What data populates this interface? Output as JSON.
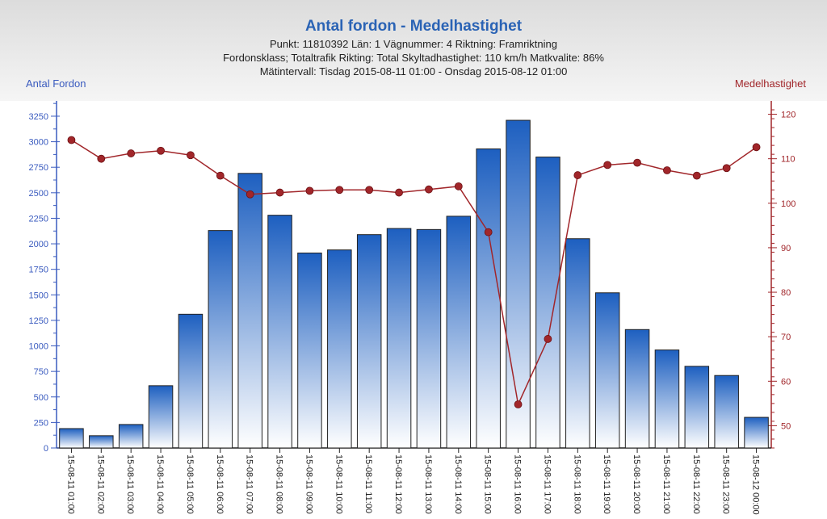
{
  "chart_data": {
    "type": "bar",
    "title": "Antal fordon - Medelhastighet",
    "subtitle_lines": [
      "Punkt: 11810392 Län: 1 Vägnummer: 4 Riktning: Framriktning",
      "Fordonsklass; Totaltrafik Rikting: Total Skyltadhastighet: 110 km/h Matkvalite: 86%",
      "Mätintervall: Tisdag 2015-08-11 01:00 - Onsdag 2015-08-12 01:00"
    ],
    "ylabel": "Antal Fordon",
    "y2label": "Medelhastighet",
    "ylim": [
      0,
      3400
    ],
    "y2lim": [
      45,
      123
    ],
    "yticks": [
      0,
      250,
      500,
      750,
      1000,
      1250,
      1500,
      1750,
      2000,
      2250,
      2500,
      2750,
      3000,
      3250
    ],
    "y2ticks": [
      50,
      60,
      70,
      80,
      90,
      100,
      110,
      120
    ],
    "categories": [
      "15-08-11 01:00",
      "15-08-11 02:00",
      "15-08-11 03:00",
      "15-08-11 04:00",
      "15-08-11 05:00",
      "15-08-11 06:00",
      "15-08-11 07:00",
      "15-08-11 08:00",
      "15-08-11 09:00",
      "15-08-11 10:00",
      "15-08-11 11:00",
      "15-08-11 12:00",
      "15-08-11 13:00",
      "15-08-11 14:00",
      "15-08-11 15:00",
      "15-08-11 16:00",
      "15-08-11 17:00",
      "15-08-11 18:00",
      "15-08-11 19:00",
      "15-08-11 20:00",
      "15-08-11 21:00",
      "15-08-11 22:00",
      "15-08-11 23:00",
      "15-08-12 00:00"
    ],
    "series": [
      {
        "axis": "left",
        "kind": "bar",
        "color": "#2a6fc9",
        "values": [
          190,
          120,
          230,
          610,
          1310,
          2130,
          2690,
          2280,
          1910,
          1940,
          2090,
          2150,
          2140,
          2270,
          2930,
          3210,
          2850,
          2050,
          1520,
          1160,
          960,
          800,
          710,
          300
        ]
      },
      {
        "axis": "right",
        "kind": "line",
        "color": "#a1262a",
        "values": [
          114.2,
          110,
          111.2,
          111.8,
          110.8,
          106.2,
          102,
          102.4,
          102.8,
          103,
          103,
          102.4,
          103.1,
          103.8,
          93.5,
          54.8,
          69.5,
          106.3,
          108.6,
          109.1,
          107.4,
          106.2,
          107.9,
          112.6
        ]
      }
    ],
    "grid": false,
    "colors": {
      "left_axis": "#3a5bbf",
      "right_axis": "#a1262a",
      "title": "#2a63b5"
    }
  }
}
